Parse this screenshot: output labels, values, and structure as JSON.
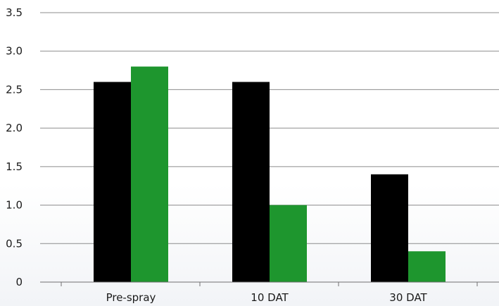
{
  "chart_data": {
    "type": "bar",
    "title": "",
    "xlabel": "",
    "ylabel": "",
    "categories": [
      "Pre-spray",
      "10 DAT",
      "30 DAT"
    ],
    "series": [
      {
        "values": [
          2.6,
          2.6,
          1.4
        ],
        "color": "#000000"
      },
      {
        "values": [
          2.8,
          1.0,
          0.4
        ],
        "color": "#1e962e"
      }
    ],
    "ylim": [
      0,
      3.5
    ],
    "yticks": [
      0,
      0.5,
      1.0,
      1.5,
      2.0,
      2.5,
      3.0,
      3.5
    ],
    "ytick_labels": [
      "0",
      "0.5",
      "1.0",
      "1.5",
      "2.0",
      "2.5",
      "3.0",
      "3.5"
    ],
    "grid": true,
    "legend": "none"
  }
}
